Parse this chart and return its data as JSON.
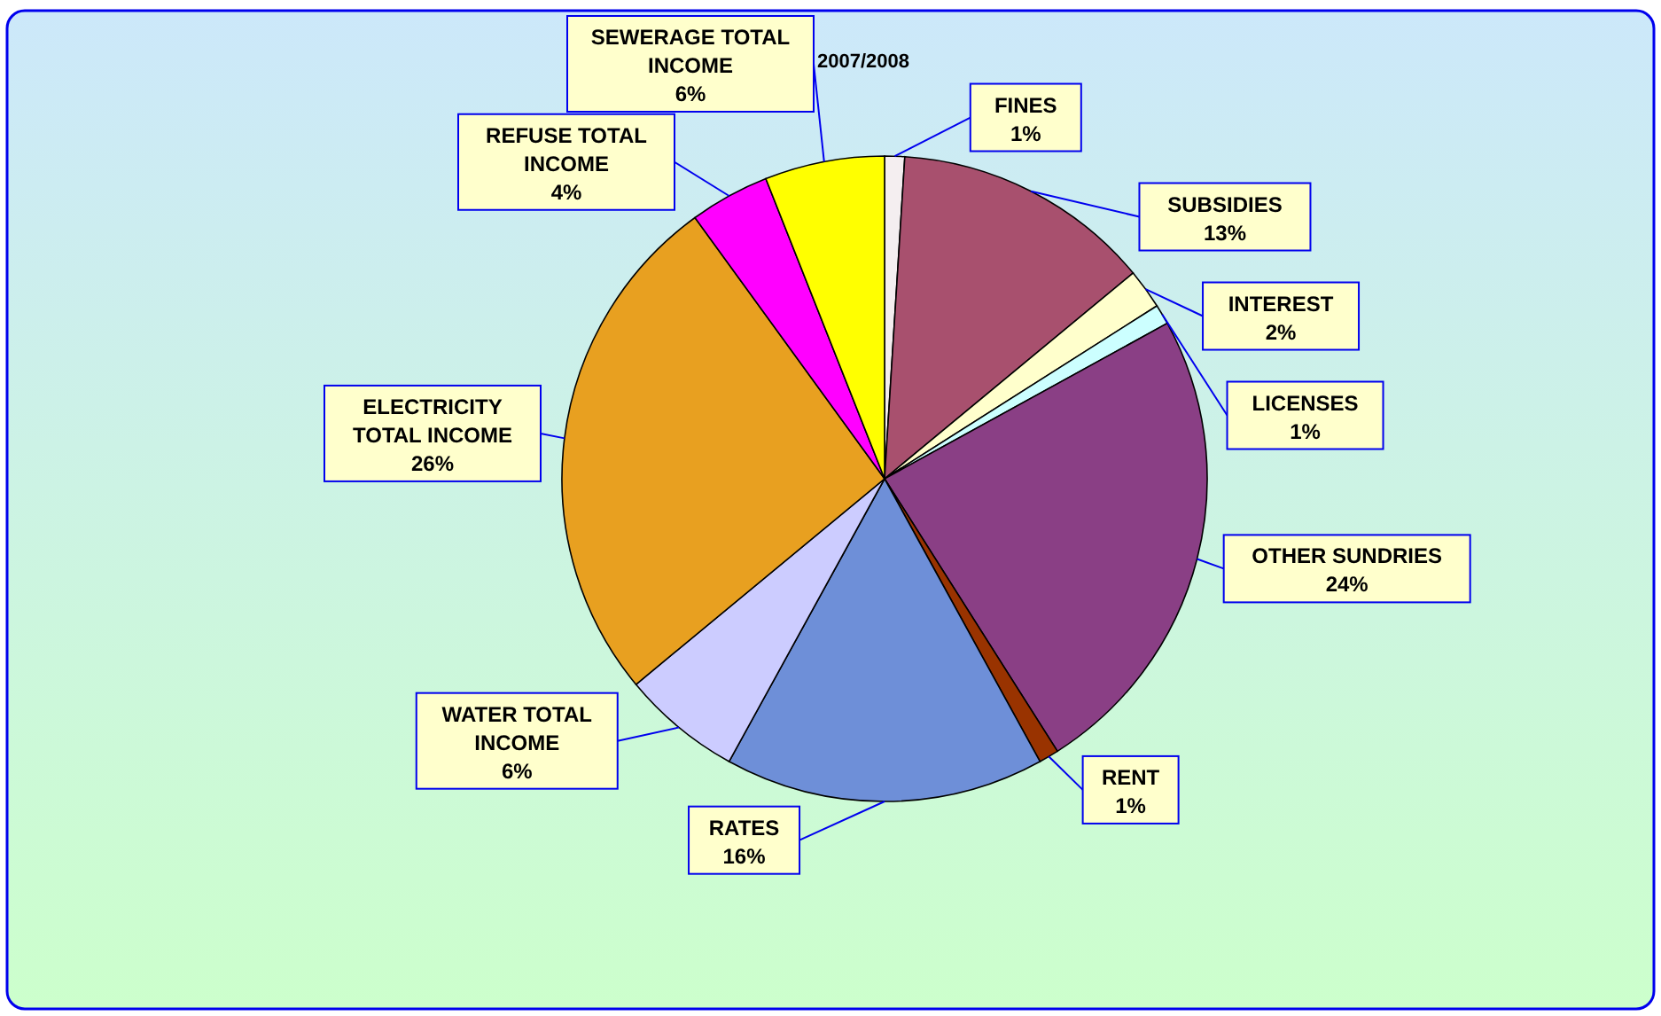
{
  "chart_data": {
    "type": "pie",
    "title": "2007/2008",
    "categories": [
      "FINES",
      "SUBSIDIES",
      "INTEREST",
      "LICENSES",
      "OTHER SUNDRIES",
      "RENT",
      "RATES",
      "WATER TOTAL INCOME",
      "ELECTRICITY TOTAL INCOME",
      "REFUSE TOTAL INCOME",
      "SEWERAGE TOTAL INCOME"
    ],
    "values": [
      1,
      13,
      2,
      1,
      24,
      1,
      16,
      6,
      26,
      4,
      6
    ],
    "value_labels": [
      "1%",
      "13%",
      "2%",
      "1%",
      "24%",
      "1%",
      "16%",
      "6%",
      "26%",
      "4%",
      "6%"
    ],
    "colors": [
      "#f4eef0",
      "#a8506e",
      "#ffffcc",
      "#ccffff",
      "#8a3f85",
      "#993300",
      "#6e8fd8",
      "#ccccff",
      "#e8a020",
      "#ff00ff",
      "#ffff00"
    ]
  }
}
